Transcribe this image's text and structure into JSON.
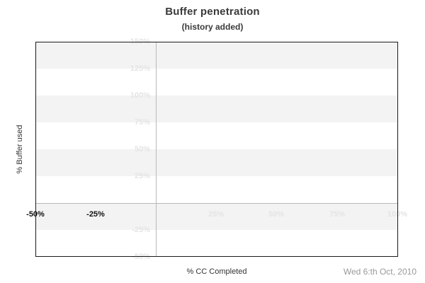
{
  "header": {
    "title": "Buffer penetration",
    "subtitle": "(history added)"
  },
  "footer": {
    "date": "Wed 6:th Oct, 2010"
  },
  "chart_data": {
    "type": "line",
    "title": "Buffer penetration",
    "subtitle": "(history added)",
    "xlabel": "% CC Completed",
    "ylabel": "% Buffer used",
    "xlim": [
      -50,
      100
    ],
    "ylim": [
      -50,
      150
    ],
    "x_ticks": [
      {
        "label": "-50%",
        "value": -50,
        "style": "dark"
      },
      {
        "label": "-25%",
        "value": -25,
        "style": "dark"
      },
      {
        "label": "25%",
        "value": 25,
        "style": "light"
      },
      {
        "label": "50%",
        "value": 50,
        "style": "light"
      },
      {
        "label": "75%",
        "value": 75,
        "style": "light"
      },
      {
        "label": "100%",
        "value": 100,
        "style": "light"
      }
    ],
    "y_ticks": [
      {
        "label": "150%",
        "value": 150
      },
      {
        "label": "125%",
        "value": 125
      },
      {
        "label": "100%",
        "value": 100
      },
      {
        "label": "75%",
        "value": 75
      },
      {
        "label": "50%",
        "value": 50
      },
      {
        "label": "25%",
        "value": 25
      },
      {
        "label": "-25%",
        "value": -25
      },
      {
        "label": "-50%",
        "value": -50
      }
    ],
    "series": [],
    "grid": {
      "horizontal_stripes_every_percent": 25,
      "stripe_color": "#f3f3f3",
      "zero_axes_highlighted": true
    },
    "legend": "none",
    "date_annotation": "Wed 6:th Oct, 2010"
  },
  "colors": {
    "background": "#ffffff",
    "title_text": "#3a3a3a",
    "axis_title_text": "#333333",
    "dark_tick": "#111111",
    "light_tick": "#e4e4e4",
    "stripe": "#f3f3f3",
    "zero_line": "#b9b9b9",
    "plot_border": "#1a1a1a",
    "date_text": "#999999"
  }
}
